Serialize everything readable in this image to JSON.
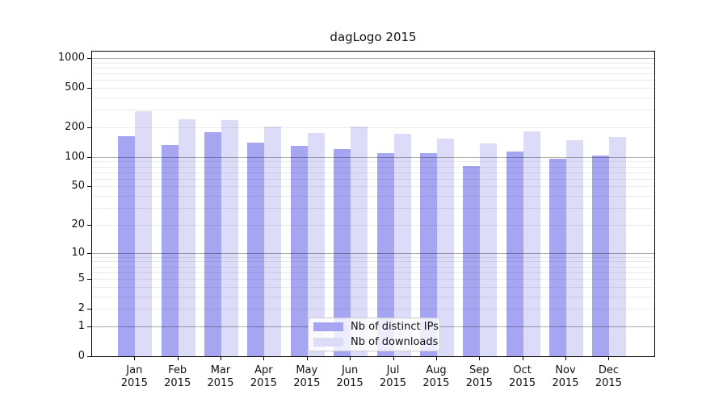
{
  "chart_data": {
    "type": "bar",
    "title": "dagLogo 2015",
    "categories": [
      "Jan",
      "Feb",
      "Mar",
      "Apr",
      "May",
      "Jun",
      "Jul",
      "Aug",
      "Sep",
      "Oct",
      "Nov",
      "Dec"
    ],
    "category_sublabel": "2015",
    "series": [
      {
        "name": "Nb of distinct IPs",
        "color": "#a5a5f2",
        "values": [
          163,
          133,
          178,
          140,
          130,
          120,
          110,
          109,
          81,
          114,
          96,
          103
        ]
      },
      {
        "name": "Nb of downloads",
        "color": "#dcdcf9",
        "values": [
          290,
          242,
          235,
          202,
          176,
          202,
          172,
          154,
          137,
          181,
          147,
          160
        ]
      }
    ],
    "y_axis": {
      "ticks": [
        1000,
        500,
        200,
        100,
        50,
        20,
        10,
        5,
        2,
        1,
        0
      ],
      "scale": "log10(1+v)",
      "top_value": 1200
    },
    "x_axis": {
      "tick_style": "centered under each month group"
    },
    "grid": {
      "major_at": [
        1,
        10,
        100,
        1000
      ],
      "minor_per_decade": [
        2,
        3,
        4,
        5,
        6,
        7,
        8,
        9
      ],
      "major_color": "rgba(0,0,0,0.33)",
      "minor_color": "rgba(0,0,0,0.08)"
    },
    "legend": {
      "position": "lower center inside plot",
      "entries": [
        "Nb of distinct IPs",
        "Nb of downloads"
      ]
    },
    "colors": {
      "spine": "#000000",
      "background": "#ffffff",
      "text": "#111111"
    }
  }
}
